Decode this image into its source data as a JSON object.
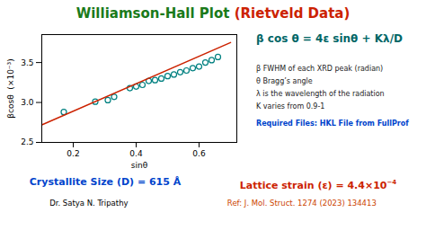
{
  "chart_data": {
    "type": "scatter",
    "title": [
      {
        "text": "Williamson-Hall Plot ",
        "color": "#1a7a1a"
      },
      {
        "text": "(Rietveld Data)",
        "color": "#cc2200"
      }
    ],
    "xlabel": "sinθ",
    "ylabel": "βcosθ  (×10⁻³)",
    "xlim": [
      0.1,
      0.72
    ],
    "ylim": [
      2.5,
      3.85
    ],
    "xticks": [
      0.2,
      0.4,
      0.6
    ],
    "yticks": [
      2.5,
      {
        "value": 3.0,
        "label": "3.0"
      },
      3.5
    ],
    "series": [
      {
        "type": "scatter",
        "marker": "circle",
        "color": "#008080",
        "x": [
          0.17,
          0.27,
          0.31,
          0.33,
          0.38,
          0.4,
          0.42,
          0.44,
          0.46,
          0.48,
          0.5,
          0.52,
          0.54,
          0.56,
          0.58,
          0.6,
          0.62,
          0.64,
          0.66
        ],
        "values": [
          2.88,
          3.01,
          3.03,
          3.07,
          3.18,
          3.2,
          3.22,
          3.27,
          3.28,
          3.3,
          3.33,
          3.35,
          3.38,
          3.4,
          3.43,
          3.45,
          3.5,
          3.53,
          3.57
        ]
      },
      {
        "type": "line",
        "color": "#cc2200",
        "x": [
          0.1,
          0.7
        ],
        "values": [
          2.72,
          3.75
        ]
      }
    ],
    "equation": {
      "text": "β cos θ = 4ε sinθ + Kλ/D",
      "color": "#006666"
    },
    "notes": {
      "color": "#222222",
      "texts": [
        "β FWHM of each XRD peak (radian)",
        "θ Bragg’s angle",
        "λ is the wavelength of the radiation",
        "K varies from 0.9-1"
      ]
    },
    "required": {
      "text": "Required Files: HKL File from FullProf",
      "color": "#0044cc"
    },
    "results": [
      {
        "text": "Crystallite Size (D) = 615 Å",
        "color": "#0044cc"
      },
      {
        "text": "Lattice strain (ε) = 4.4×10",
        "superscript": "−4",
        "color": "#cc2200"
      }
    ],
    "footer": [
      {
        "text": "Dr. Satya N. Tripathy"
      },
      {
        "text": "Ref: J. Mol. Struct. 1274 (2023) 134413",
        "color": "#cc4400"
      }
    ]
  }
}
